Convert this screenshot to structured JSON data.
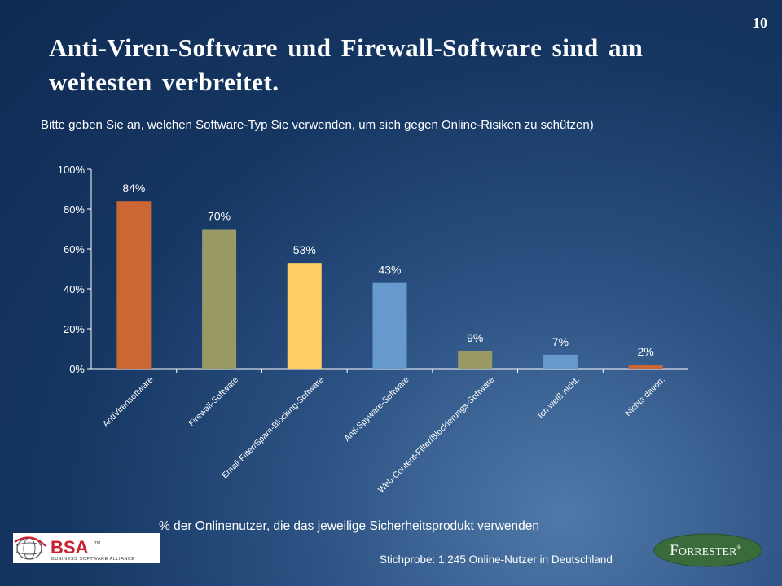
{
  "slide": {
    "number": "10",
    "title": "Anti-Viren-Software und Firewall-Software sind am weitesten verbreitet.",
    "subtitle": "Bitte geben Sie an, welchen Software-Typ Sie verwenden, um sich gegen Online-Risiken zu schützen)",
    "footnote": "% der Onlinenutzer, die das jeweilige Sicherheitsprodukt verwenden",
    "sample": "Stichprobe: 1.245 Online-Nutzer in Deutschland"
  },
  "logos": {
    "bsa": {
      "name": "BSA",
      "tm": "TM",
      "tagline": "BUSINESS SOFTWARE ALLIANCE"
    },
    "forrester": {
      "first": "F",
      "rest": "ORRESTER",
      "mark": "®"
    }
  },
  "chart_data": {
    "type": "bar",
    "categories": [
      "AntiVirensoftware",
      "Firewall-Software",
      "Email-Filter/Spam-Blocking-Software",
      "Anti-Spyware-Software",
      "Web-Content-Filter/Blockierungs-Software",
      "Ich weiß nicht.",
      "Nichts davon."
    ],
    "values": [
      84,
      70,
      53,
      43,
      9,
      7,
      2
    ],
    "data_labels": [
      "84%",
      "70%",
      "53%",
      "43%",
      "9%",
      "7%",
      "2%"
    ],
    "colors": [
      "#cc6633",
      "#999966",
      "#ffcc66",
      "#6699cc",
      "#999966",
      "#6699cc",
      "#cc6633"
    ],
    "ylim": [
      0,
      100
    ],
    "yticks": [
      "0%",
      "20%",
      "40%",
      "60%",
      "80%",
      "100%"
    ],
    "grid": false,
    "legend": "none"
  }
}
